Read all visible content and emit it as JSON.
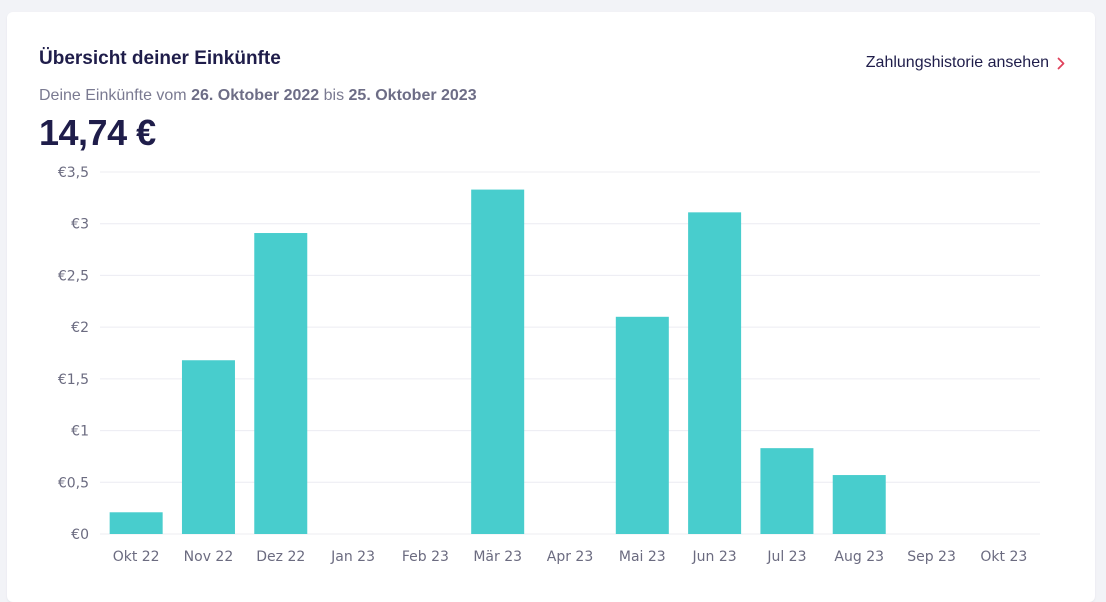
{
  "header": {
    "title": "Übersicht deiner Einkünfte",
    "history_link": "Zahlungshistorie ansehen",
    "history_icon": "chevron-right-icon",
    "subtitle_prefix": "Deine Einkünfte vom",
    "date_from": "26. Oktober 2022",
    "subtitle_middle": "bis",
    "date_to": "25. Oktober 2023",
    "total": "14,74 €"
  },
  "colors": {
    "bar": "#48cdcd",
    "grid": "#ececf2",
    "accent": "#e0425c",
    "text": "#1f1d4a"
  },
  "chart_data": {
    "type": "bar",
    "categories": [
      "Okt 22",
      "Nov 22",
      "Dez 22",
      "Jan 23",
      "Feb 23",
      "Mär 23",
      "Apr 23",
      "Mai 23",
      "Jun 23",
      "Jul 23",
      "Aug 23",
      "Sep 23",
      "Okt 23"
    ],
    "values": [
      0.21,
      1.68,
      2.91,
      0,
      0,
      3.33,
      0,
      2.1,
      3.11,
      0.83,
      0.57,
      0,
      0
    ],
    "ylim": [
      0,
      3.5
    ],
    "yticks": [
      0,
      0.5,
      1,
      1.5,
      2,
      2.5,
      3,
      3.5
    ],
    "ytick_labels": [
      "€0",
      "€0,5",
      "€1",
      "€1,5",
      "€2",
      "€2,5",
      "€3",
      "€3,5"
    ],
    "grid": true,
    "legend": "none"
  }
}
